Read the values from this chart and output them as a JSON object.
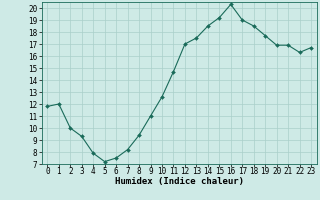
{
  "x": [
    0,
    1,
    2,
    3,
    4,
    5,
    6,
    7,
    8,
    9,
    10,
    11,
    12,
    13,
    14,
    15,
    16,
    17,
    18,
    19,
    20,
    21,
    22,
    23
  ],
  "y": [
    11.8,
    12.0,
    10.0,
    9.3,
    7.9,
    7.2,
    7.5,
    8.2,
    9.4,
    11.0,
    12.6,
    14.7,
    17.0,
    17.5,
    18.5,
    19.2,
    20.3,
    19.0,
    18.5,
    17.7,
    16.9,
    16.9,
    16.3,
    16.7
  ],
  "line_color": "#1a6b5a",
  "marker": "D",
  "marker_size": 2.0,
  "bg_color": "#ceeae6",
  "grid_color": "#aacfca",
  "xlabel": "Humidex (Indice chaleur)",
  "ylabel": "",
  "xlim": [
    -0.5,
    23.5
  ],
  "ylim": [
    7,
    20.5
  ],
  "yticks": [
    7,
    8,
    9,
    10,
    11,
    12,
    13,
    14,
    15,
    16,
    17,
    18,
    19,
    20
  ],
  "xticks": [
    0,
    1,
    2,
    3,
    4,
    5,
    6,
    7,
    8,
    9,
    10,
    11,
    12,
    13,
    14,
    15,
    16,
    17,
    18,
    19,
    20,
    21,
    22,
    23
  ],
  "label_fontsize": 6.5,
  "tick_fontsize": 5.5
}
